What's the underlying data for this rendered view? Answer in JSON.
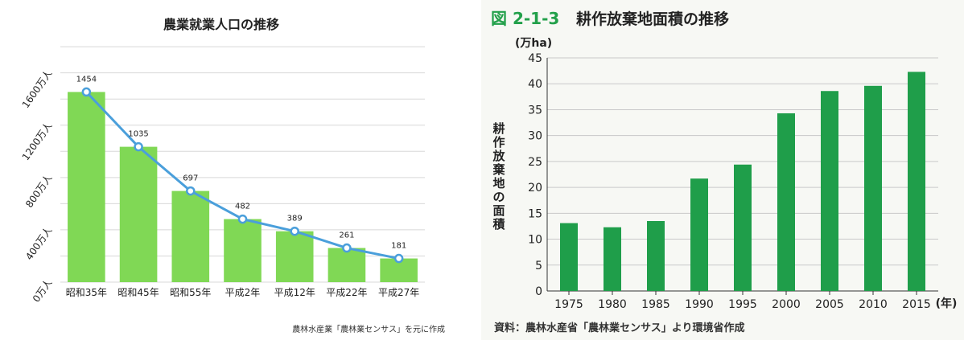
{
  "chart_data": [
    {
      "type": "bar",
      "title": "農業就業人口の推移",
      "categories": [
        "昭和35年",
        "昭和45年",
        "昭和55年",
        "平成2年",
        "平成12年",
        "平成22年",
        "平成27年"
      ],
      "values": [
        1454,
        1035,
        697,
        482,
        389,
        261,
        181
      ],
      "overlay": "line",
      "ytick_labels": [
        "0万人",
        "400万人",
        "800万人",
        "1200万人",
        "1600万人"
      ],
      "yticks": [
        0,
        400,
        800,
        1200,
        1600
      ],
      "ylim": [
        0,
        1850
      ],
      "grid": "horizontal",
      "colors": {
        "bar": "#80d855",
        "line": "#4a9fdb",
        "marker_fill": "#ffffff"
      },
      "source": "農林水産業「農林業センサス」を元に作成"
    },
    {
      "type": "bar",
      "title_prefix": "図 2-1-3",
      "title": "耕作放棄地面積の推移",
      "ylabel": "耕作放棄地の面積",
      "yunit": "(万ha)",
      "xunit": "(年)",
      "categories": [
        "1975",
        "1980",
        "1985",
        "1990",
        "1995",
        "2000",
        "2005",
        "2010",
        "2015"
      ],
      "values": [
        13.1,
        12.3,
        13.5,
        21.7,
        24.4,
        34.3,
        38.6,
        39.6,
        42.3
      ],
      "yticks": [
        0,
        5,
        10,
        15,
        20,
        25,
        30,
        35,
        40,
        45
      ],
      "ylim": [
        0,
        45
      ],
      "grid": "horizontal",
      "colors": {
        "bar": "#1f9e4a",
        "title_prefix": "#22a04a"
      },
      "source": "資料：農林水産省「農林業センサス」より環境省作成"
    }
  ]
}
